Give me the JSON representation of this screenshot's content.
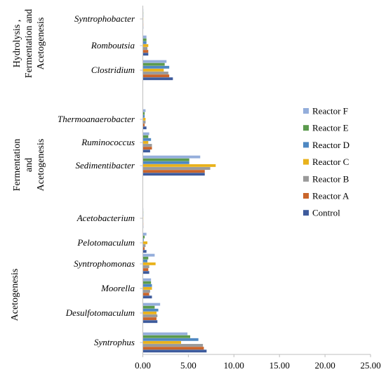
{
  "chart_data": {
    "type": "bar",
    "orientation": "horizontal",
    "categories": [
      "Syntrophus",
      "Desulfotomaculum",
      "Moorella",
      "Syntrophomonas",
      "Pelotomaculum",
      "Acetobacterium",
      "Sedimentibacter",
      "Ruminococcus",
      "Thermoanaerobacter",
      "Clostridium",
      "Romboutsia",
      "Syntrophobacter"
    ],
    "groups": [
      {
        "label": "Acetogenesis",
        "categories": [
          "Syntrophus",
          "Desulfotomaculum",
          "Moorella",
          "Syntrophomonas",
          "Pelotomaculum",
          "Acetobacterium"
        ]
      },
      {
        "label": "Fermentation and Acetogenesis",
        "lines": [
          "Fermentation",
          "and",
          "Acetogenesis"
        ],
        "categories": [
          "Sedimentibacter",
          "Ruminococcus",
          "Thermoanaerobacter"
        ]
      },
      {
        "label": "Hydrolysis , Fermentation and Acetogenesis",
        "lines": [
          "Hydrolysis ,",
          "Fermentation and",
          "Acetogenesis"
        ],
        "categories": [
          "Clostridium",
          "Romboutsia",
          "Syntrophobacter"
        ]
      }
    ],
    "series": [
      {
        "name": "Control",
        "color": "#3e5b9c",
        "values": [
          7.0,
          1.6,
          1.0,
          0.7,
          0.4,
          0.05,
          6.8,
          0.8,
          0.4,
          3.3,
          0.6,
          0.05
        ]
      },
      {
        "name": "Reactor A",
        "color": "#c9652b",
        "values": [
          6.7,
          1.5,
          0.7,
          0.6,
          0.2,
          0.05,
          6.8,
          1.0,
          0.2,
          2.9,
          0.6,
          0.05
        ]
      },
      {
        "name": "Reactor B",
        "color": "#9a9a9a",
        "values": [
          6.6,
          1.6,
          0.8,
          0.7,
          0.3,
          0.05,
          7.4,
          1.0,
          0.3,
          2.8,
          0.5,
          0.05
        ]
      },
      {
        "name": "Reactor C",
        "color": "#e9b21c",
        "values": [
          4.2,
          1.5,
          1.0,
          1.4,
          0.5,
          0.05,
          8.0,
          0.6,
          0.3,
          2.3,
          0.6,
          0.05
        ]
      },
      {
        "name": "Reactor D",
        "color": "#4e88c2",
        "values": [
          6.1,
          1.7,
          1.0,
          0.5,
          0.1,
          0.05,
          5.1,
          0.9,
          0.2,
          2.9,
          0.4,
          0.05
        ]
      },
      {
        "name": "Reactor E",
        "color": "#5b9a4d",
        "values": [
          5.2,
          1.3,
          0.9,
          0.6,
          0.2,
          0.05,
          5.1,
          0.6,
          0.2,
          2.4,
          0.4,
          0.05
        ]
      },
      {
        "name": "Reactor F",
        "color": "#94aedb",
        "values": [
          4.9,
          1.9,
          0.9,
          1.3,
          0.4,
          0.05,
          6.3,
          0.7,
          0.3,
          2.6,
          0.4,
          0.05
        ]
      }
    ],
    "xlim": [
      0,
      25
    ],
    "xticks": [
      "0.00",
      "5.00",
      "10.00",
      "15.00",
      "20.00",
      "25.00"
    ],
    "legend_order": [
      "Reactor F",
      "Reactor E",
      "Reactor D",
      "Reactor C",
      "Reactor B",
      "Reactor A",
      "Control"
    ],
    "legend_position": "right",
    "grid": false
  }
}
